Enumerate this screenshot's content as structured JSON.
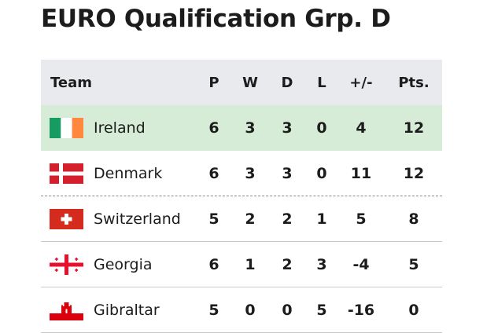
{
  "title": "EURO Qualification Grp. D",
  "columns": {
    "team": "Team",
    "played": "P",
    "won": "W",
    "drawn": "D",
    "lost": "L",
    "goal_diff": "+/-",
    "points": "Pts."
  },
  "teams": [
    {
      "name": "Ireland",
      "flag": "ireland-flag-icon",
      "p": "6",
      "w": "3",
      "d": "3",
      "l": "0",
      "gd": "4",
      "pts": "12"
    },
    {
      "name": "Denmark",
      "flag": "denmark-flag-icon",
      "p": "6",
      "w": "3",
      "d": "3",
      "l": "0",
      "gd": "11",
      "pts": "12"
    },
    {
      "name": "Switzerland",
      "flag": "switzerland-flag-icon",
      "p": "5",
      "w": "2",
      "d": "2",
      "l": "1",
      "gd": "5",
      "pts": "8"
    },
    {
      "name": "Georgia",
      "flag": "georgia-flag-icon",
      "p": "6",
      "w": "1",
      "d": "2",
      "l": "3",
      "gd": "-4",
      "pts": "5"
    },
    {
      "name": "Gibraltar",
      "flag": "gibraltar-flag-icon",
      "p": "5",
      "w": "0",
      "d": "0",
      "l": "5",
      "gd": "-16",
      "pts": "0"
    }
  ],
  "colors": {
    "header_bg": "#e9eaee",
    "leader_bg": "#d6ecd6",
    "qualification_line": "#8a8a8a"
  }
}
